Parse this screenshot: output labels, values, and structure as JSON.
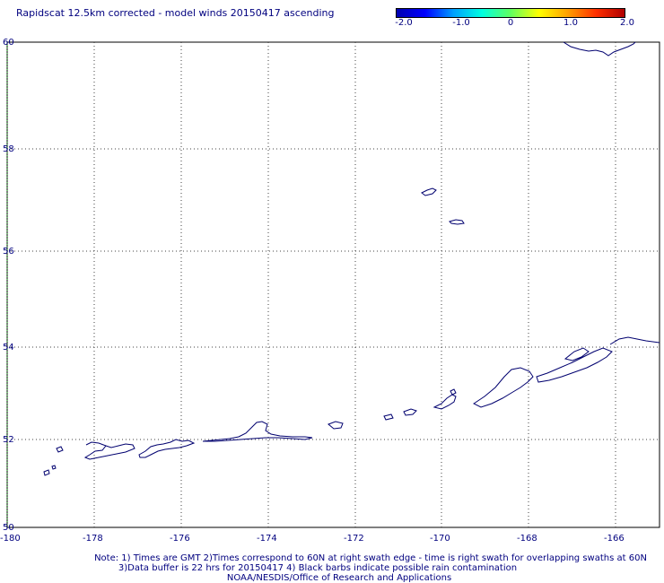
{
  "title": "Rapidscat 12.5km corrected - model winds 20150417 ascending",
  "colorbar": {
    "labels": [
      "-2.0",
      "-1.0",
      "0",
      "1.0",
      "2.0"
    ],
    "stops": [
      "#0000b0",
      "#0000ff",
      "#00a0ff",
      "#00ffe0",
      "#60ff60",
      "#ffff00",
      "#ffa000",
      "#ff3000",
      "#b00000"
    ]
  },
  "map": {
    "lon_range": [
      -180,
      -165.2
    ],
    "lat_range": [
      50,
      60
    ],
    "lon_ticks": [
      "-180",
      "-178",
      "-176",
      "-174",
      "-172",
      "-170",
      "-168",
      "-166"
    ],
    "lat_ticks": [
      "60",
      "58",
      "56",
      "54",
      "52",
      "50"
    ],
    "grid": "dotted",
    "coastline_color": "#00006f",
    "grid_color": "#404040",
    "left_edge_color": "#00a000"
  },
  "notes": {
    "line1": "Note: 1) Times are GMT 2)Times correspond to 60N at right swath edge - time is right swath for overlapping swaths at 60N",
    "line2": "3)Data buffer is 22 hrs for 20150417 4) Black barbs indicate possible rain contamination",
    "line3": "NOAA/NESDIS/Office of Research and Applications"
  }
}
